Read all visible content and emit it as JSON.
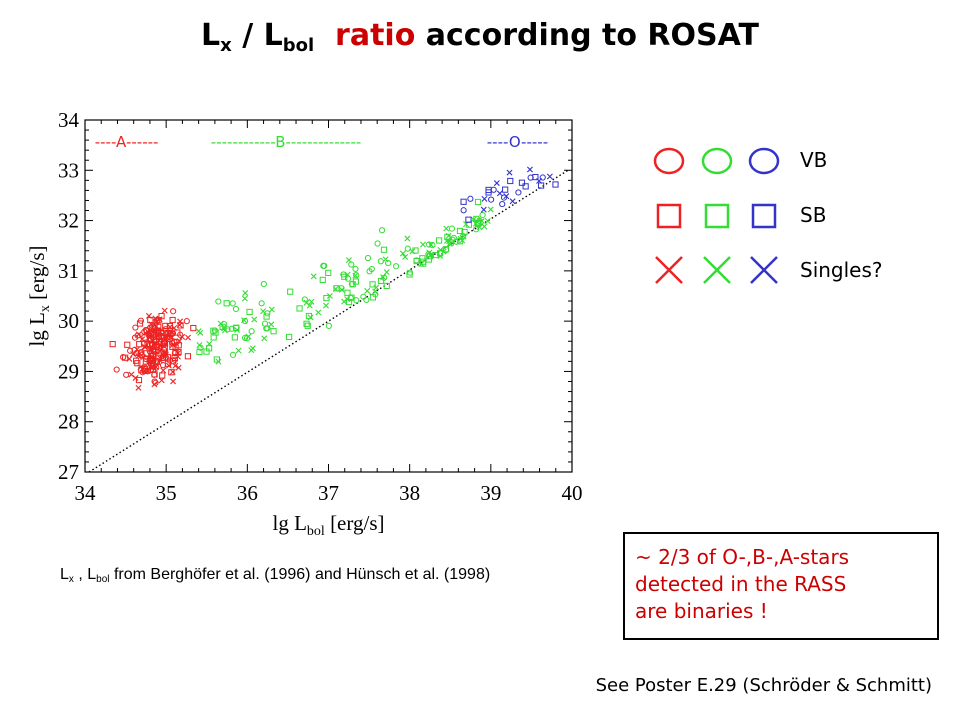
{
  "title": {
    "l_symbol": "L",
    "x_sub": "x",
    "slash": " / ",
    "bol_sub": "bol",
    "rest_red": "ratio",
    "rest_black": "according to ROSAT"
  },
  "chart_data": {
    "type": "scatter",
    "xlabel": {
      "main": "lg L",
      "sub": "bol",
      "unit": " [erg/s]"
    },
    "ylabel": {
      "main": "lg L",
      "sub": "x",
      "unit": " [erg/s]"
    },
    "xlim": [
      34,
      40
    ],
    "ylim": [
      27,
      34
    ],
    "xticks": [
      34,
      35,
      36,
      37,
      38,
      39,
      40
    ],
    "yticks": [
      27,
      28,
      29,
      30,
      31,
      32,
      33,
      34
    ],
    "diagonal_line": {
      "style": "dotted",
      "points": [
        [
          34.05,
          27
        ],
        [
          39.95,
          33
        ]
      ]
    },
    "spectral_bands": [
      {
        "text": "----A------",
        "x_start": 34.12,
        "color": "#ee2222"
      },
      {
        "text": "------------B--------------",
        "x_start": 35.55,
        "color": "#33dd33"
      },
      {
        "text": "----O-----",
        "x_start": 38.95,
        "color": "#3333cc"
      }
    ],
    "series": [
      {
        "class": "A",
        "color": "#ee2222",
        "x_range": [
          34.3,
          35.9
        ],
        "center_y": 29.55,
        "spread_y": 0.65,
        "slope": 0.45,
        "count": 220
      },
      {
        "class": "B",
        "color": "#33dd33",
        "x_range": [
          35.4,
          39.0
        ],
        "center_y": 30.6,
        "spread_y": 0.7,
        "slope": 0.55,
        "count": 190
      },
      {
        "class": "O",
        "color": "#3333cc",
        "x_range": [
          38.6,
          39.8
        ],
        "center_y": 32.6,
        "spread_y": 0.35,
        "slope": 0.6,
        "count": 30
      }
    ]
  },
  "legend": {
    "colors": [
      "#ee2222",
      "#33dd33",
      "#3333cc"
    ],
    "rows": [
      {
        "marker": "circle",
        "label": "VB"
      },
      {
        "marker": "square",
        "label": "SB"
      },
      {
        "marker": "cross",
        "label": "Singles?"
      }
    ]
  },
  "source_note": {
    "l1": "L",
    "x_sub": "x",
    "sep": " , ",
    "l2": "L",
    "bol_sub": "bol",
    "text": "  from Berghöfer et al. (1996) and Hünsch et al. (1998)"
  },
  "conclusion": {
    "lines": [
      "~ 2/3 of O-,B-,A-stars",
      "detected in the RASS",
      "are binaries !"
    ]
  },
  "poster_ref": "See Poster E.29 (Schröder & Schmitt)"
}
